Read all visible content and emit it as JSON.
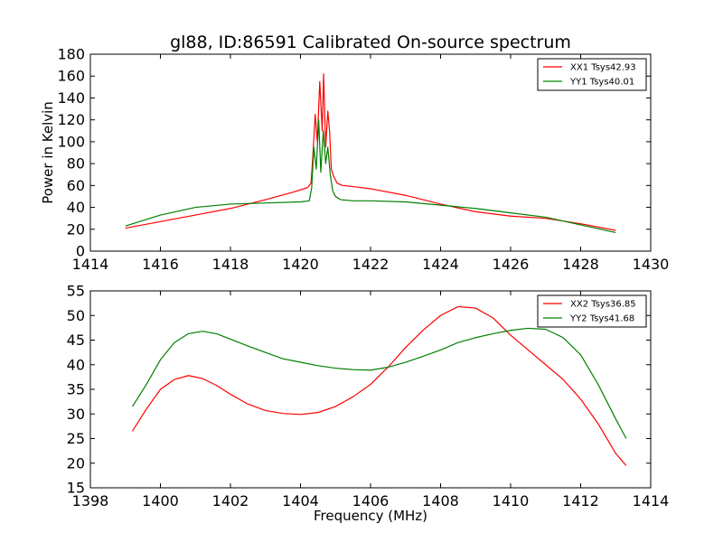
{
  "chart_data": [
    {
      "type": "line",
      "title": "gl88, ID:86591 Calibrated On-source spectrum",
      "xlabel": "",
      "ylabel": "Power in Kelvin",
      "xlim": [
        1414,
        1430
      ],
      "ylim": [
        0,
        180
      ],
      "xticks": [
        "1414",
        "1416",
        "1418",
        "1420",
        "1422",
        "1424",
        "1426",
        "1428",
        "1430"
      ],
      "yticks": [
        "0",
        "20",
        "40",
        "60",
        "80",
        "100",
        "120",
        "140",
        "160",
        "180"
      ],
      "legend_position": "top-right",
      "series": [
        {
          "name": "XX1 Tsys42.93",
          "color": "#ff0000",
          "x": [
            1415.0,
            1416.0,
            1417.0,
            1418.0,
            1419.0,
            1419.8,
            1420.2,
            1420.3,
            1420.35,
            1420.42,
            1420.48,
            1420.55,
            1420.62,
            1420.66,
            1420.72,
            1420.78,
            1420.83,
            1420.88,
            1420.95,
            1421.05,
            1421.2,
            1421.5,
            1422.0,
            1423.0,
            1424.0,
            1425.0,
            1426.0,
            1427.0,
            1428.0,
            1429.0
          ],
          "y": [
            21,
            27,
            33,
            39,
            47,
            54,
            58,
            62,
            85,
            125,
            100,
            155,
            110,
            162,
            95,
            128,
            110,
            75,
            68,
            62,
            60,
            59,
            57,
            51,
            43,
            36,
            32,
            30,
            25,
            19
          ]
        },
        {
          "name": "YY1 Tsys40.01",
          "color": "#008000",
          "x": [
            1415.0,
            1416.0,
            1417.0,
            1418.0,
            1419.0,
            1420.0,
            1420.25,
            1420.32,
            1420.38,
            1420.45,
            1420.52,
            1420.58,
            1420.65,
            1420.72,
            1420.78,
            1420.85,
            1420.92,
            1421.0,
            1421.15,
            1421.5,
            1422.0,
            1423.0,
            1424.0,
            1425.0,
            1426.0,
            1427.0,
            1428.0,
            1429.0
          ],
          "y": [
            23,
            33,
            40,
            43,
            44,
            45,
            46,
            58,
            95,
            75,
            120,
            72,
            110,
            80,
            95,
            70,
            55,
            50,
            47,
            46,
            46,
            45,
            42,
            39,
            35,
            31,
            24,
            17
          ]
        }
      ]
    },
    {
      "type": "line",
      "title": "",
      "xlabel": "Frequency (MHz)",
      "ylabel": "",
      "xlim": [
        1398,
        1414
      ],
      "ylim": [
        15,
        55
      ],
      "xticks": [
        "1398",
        "1400",
        "1402",
        "1404",
        "1406",
        "1408",
        "1410",
        "1412",
        "1414"
      ],
      "yticks": [
        "15",
        "20",
        "25",
        "30",
        "35",
        "40",
        "45",
        "50",
        "55"
      ],
      "legend_position": "top-right",
      "series": [
        {
          "name": "XX2 Tsys36.85",
          "color": "#ff0000",
          "x": [
            1399.2,
            1399.6,
            1400.0,
            1400.4,
            1400.8,
            1401.2,
            1401.6,
            1402.0,
            1402.5,
            1403.0,
            1403.5,
            1404.0,
            1404.5,
            1405.0,
            1405.5,
            1406.0,
            1406.5,
            1407.0,
            1407.5,
            1408.0,
            1408.5,
            1409.0,
            1409.5,
            1410.0,
            1410.5,
            1411.0,
            1411.5,
            1412.0,
            1412.5,
            1413.0,
            1413.3
          ],
          "y": [
            26.5,
            31,
            35,
            37,
            37.8,
            37.2,
            35.8,
            34,
            32,
            30.7,
            30.1,
            29.9,
            30.3,
            31.5,
            33.5,
            36,
            39.5,
            43.5,
            47,
            50,
            51.8,
            51.5,
            49.5,
            46,
            43,
            40,
            37,
            33,
            28,
            22,
            19.5
          ]
        },
        {
          "name": "YY2 Tsys41.68",
          "color": "#008000",
          "x": [
            1399.2,
            1399.6,
            1400.0,
            1400.4,
            1400.8,
            1401.2,
            1401.6,
            1402.0,
            1402.5,
            1403.0,
            1403.5,
            1404.0,
            1404.5,
            1405.0,
            1405.5,
            1406.0,
            1406.5,
            1407.0,
            1407.5,
            1408.0,
            1408.5,
            1409.0,
            1409.5,
            1410.0,
            1410.5,
            1411.0,
            1411.5,
            1412.0,
            1412.5,
            1413.0,
            1413.3
          ],
          "y": [
            31.5,
            36,
            41,
            44.5,
            46.3,
            46.8,
            46.3,
            45.2,
            43.8,
            42.5,
            41.2,
            40.5,
            39.8,
            39.3,
            39,
            38.9,
            39.5,
            40.5,
            41.7,
            43,
            44.5,
            45.5,
            46.3,
            47,
            47.4,
            47.2,
            45.5,
            42,
            36,
            29,
            25
          ]
        }
      ]
    }
  ]
}
